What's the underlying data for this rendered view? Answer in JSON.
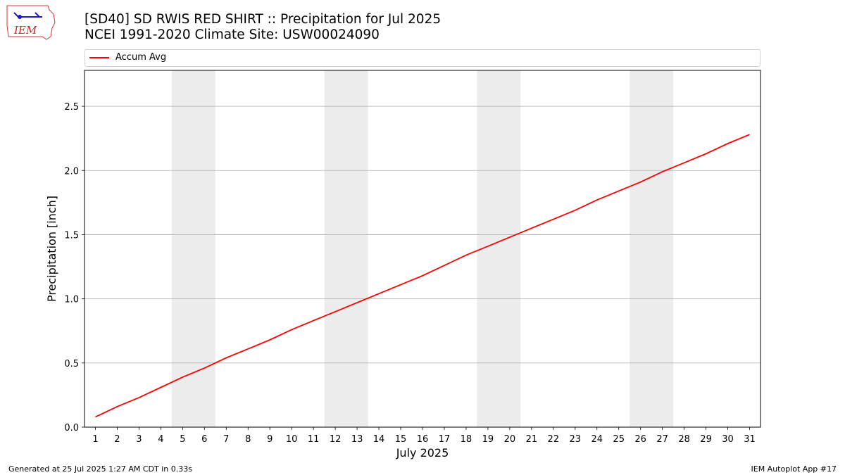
{
  "logo": {
    "text": "IEM"
  },
  "header": {
    "title_line1": "[SD40] SD RWIS RED SHIRT :: Precipitation for Jul 2025",
    "title_line2": "NCEI 1991-2020 Climate Site: USW00024090"
  },
  "footer": {
    "left": "Generated at 25 Jul 2025 1:27 AM CDT in 0.33s",
    "right": "IEM Autoplot App #17"
  },
  "chart_data": {
    "type": "line",
    "xlabel": "July 2025",
    "ylabel": "Precipitation [inch]",
    "xlim": [
      0.5,
      31.5
    ],
    "ylim": [
      0,
      2.78
    ],
    "yticks": [
      0.0,
      0.5,
      1.0,
      1.5,
      2.0,
      2.5
    ],
    "ytick_labels": [
      "0.0",
      "0.5",
      "1.0",
      "1.5",
      "2.0",
      "2.5"
    ],
    "x": [
      1,
      2,
      3,
      4,
      5,
      6,
      7,
      8,
      9,
      10,
      11,
      12,
      13,
      14,
      15,
      16,
      17,
      18,
      19,
      20,
      21,
      22,
      23,
      24,
      25,
      26,
      27,
      28,
      29,
      30,
      31
    ],
    "grid": "horizontal",
    "legend_position": "top",
    "weekend_bands": [
      [
        4.5,
        6.5
      ],
      [
        11.5,
        13.5
      ],
      [
        18.5,
        20.5
      ],
      [
        25.5,
        27.5
      ]
    ],
    "band_color": "#ececec",
    "series": [
      {
        "name": "Accum Avg",
        "color": "#ff0000",
        "values": [
          0.08,
          0.16,
          0.23,
          0.31,
          0.39,
          0.46,
          0.54,
          0.61,
          0.68,
          0.76,
          0.83,
          0.9,
          0.97,
          1.04,
          1.11,
          1.18,
          1.26,
          1.34,
          1.41,
          1.48,
          1.55,
          1.62,
          1.69,
          1.77,
          1.84,
          1.91,
          1.99,
          2.06,
          2.13,
          2.21,
          2.28
        ]
      }
    ]
  }
}
